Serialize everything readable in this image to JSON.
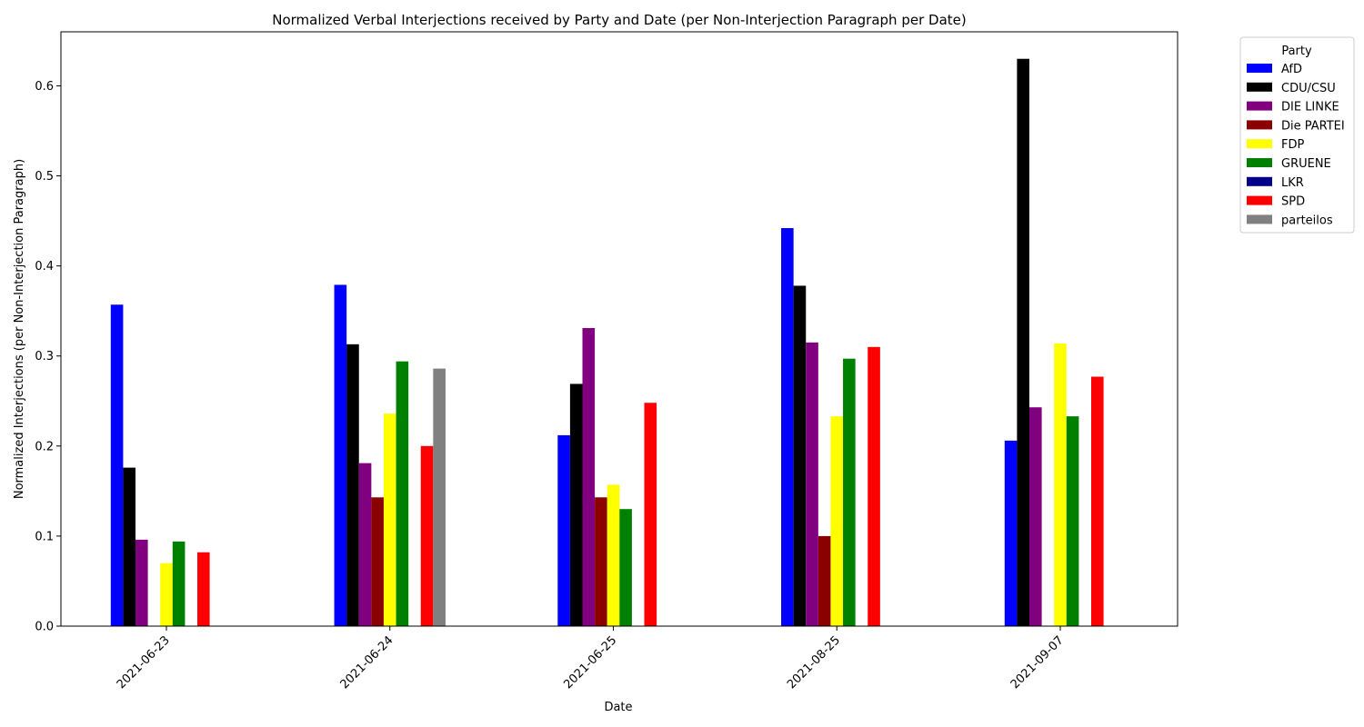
{
  "chart_data": {
    "type": "bar",
    "title": "Normalized Verbal Interjections received by Party and Date (per Non-Interjection Paragraph per Date)",
    "xlabel": "Date",
    "ylabel": "Normalized Interjections (per Non-Interjection Paragraph)",
    "ylim": [
      0,
      0.66
    ],
    "yticks": [
      "0.0",
      "0.1",
      "0.2",
      "0.3",
      "0.4",
      "0.5",
      "0.6"
    ],
    "categories": [
      "2021-06-23",
      "2021-06-24",
      "2021-06-25",
      "2021-08-25",
      "2021-09-07"
    ],
    "legend": {
      "title": "Party",
      "placement": "outside-top-right"
    },
    "grid": false,
    "series": [
      {
        "name": "AfD",
        "color": "#0000ff",
        "values": [
          0.357,
          0.379,
          0.212,
          0.442,
          0.206
        ]
      },
      {
        "name": "CDU/CSU",
        "color": "#000000",
        "values": [
          0.176,
          0.313,
          0.269,
          0.378,
          0.63
        ]
      },
      {
        "name": "DIE LINKE",
        "color": "#800080",
        "values": [
          0.096,
          0.181,
          0.331,
          0.315,
          0.243
        ]
      },
      {
        "name": "Die PARTEI",
        "color": "#8b0000",
        "values": [
          0,
          0.143,
          0.143,
          0.1,
          0
        ]
      },
      {
        "name": "FDP",
        "color": "#ffff00",
        "values": [
          0.07,
          0.236,
          0.157,
          0.233,
          0.314
        ]
      },
      {
        "name": "GRUENE",
        "color": "#008000",
        "values": [
          0.094,
          0.294,
          0.13,
          0.297,
          0.233
        ]
      },
      {
        "name": "LKR",
        "color": "#00008b",
        "values": [
          0,
          0,
          0,
          0,
          0
        ]
      },
      {
        "name": "SPD",
        "color": "#ff0000",
        "values": [
          0.082,
          0.2,
          0.248,
          0.31,
          0.277
        ]
      },
      {
        "name": "parteilos",
        "color": "#808080",
        "values": [
          0,
          0.286,
          0,
          0,
          0
        ]
      }
    ]
  }
}
